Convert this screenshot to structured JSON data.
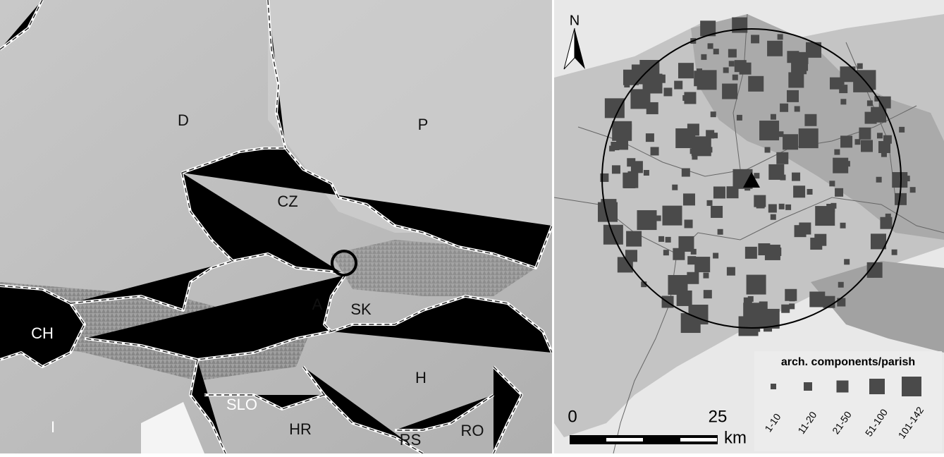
{
  "left_map": {
    "labels": [
      "D",
      "P",
      "CZ",
      "CH",
      "A",
      "SK",
      "H",
      "SLO",
      "I",
      "HR",
      "RS",
      "RO"
    ]
  },
  "right_map": {
    "north": "N",
    "scale": {
      "start": "0",
      "end": "25",
      "unit": "km"
    },
    "legend": {
      "title": "arch. components/parish",
      "classes": [
        "1-10",
        "11-20",
        "21-50",
        "51-100",
        "101-142"
      ]
    }
  }
}
